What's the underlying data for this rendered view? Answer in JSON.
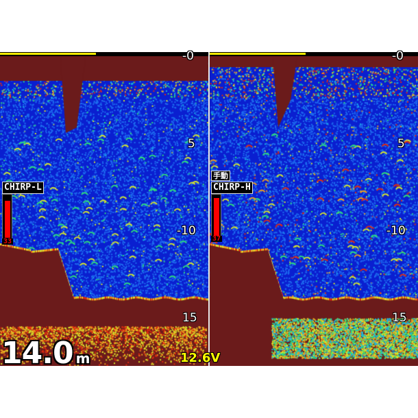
{
  "depth_scale": {
    "labels": [
      "-0",
      "5",
      "-10",
      "15"
    ],
    "unit": "m"
  },
  "left_pane": {
    "frequency": "CHIRP-L",
    "gain": "33",
    "gain_level": 0.85,
    "range_bar_fraction": 0.46
  },
  "right_pane": {
    "mode": "手動",
    "frequency": "CHIRP-H",
    "gain": "37",
    "gain_level": 0.9,
    "range_bar_fraction": 0.46
  },
  "status": {
    "depth": "14.0",
    "depth_unit": "m",
    "voltage": "12.6V"
  },
  "colors": {
    "bottom": "#6b1b1b",
    "water": "#0a1fd0",
    "range_bar": "#f2ec00"
  }
}
